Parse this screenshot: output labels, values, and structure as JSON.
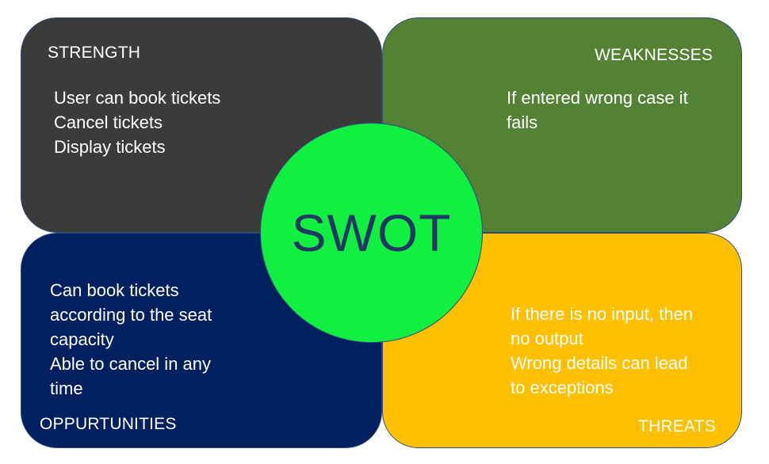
{
  "center": {
    "label": "SWOT"
  },
  "strength": {
    "heading": "STRENGTH",
    "lines": [
      "User can book tickets",
      "Cancel tickets",
      "Display tickets"
    ]
  },
  "weaknesses": {
    "heading": "WEAKNESSES",
    "lines": [
      "If entered wrong case it",
      "fails"
    ]
  },
  "opportunities": {
    "heading": "OPPURTUNITIES",
    "lines": [
      "Can book tickets",
      "according to the seat",
      "capacity",
      "Able to cancel in any",
      "time"
    ]
  },
  "threats": {
    "heading": "THREATS",
    "lines": [
      "If there is no input, then",
      "no output",
      "Wrong details can lead",
      "to exceptions"
    ]
  },
  "colors": {
    "strength": "#3b3b39",
    "weaknesses": "#548235",
    "opportunities": "#002060",
    "threats": "#ffc000",
    "center": "#11ef40",
    "center_text": "#1f3864"
  }
}
